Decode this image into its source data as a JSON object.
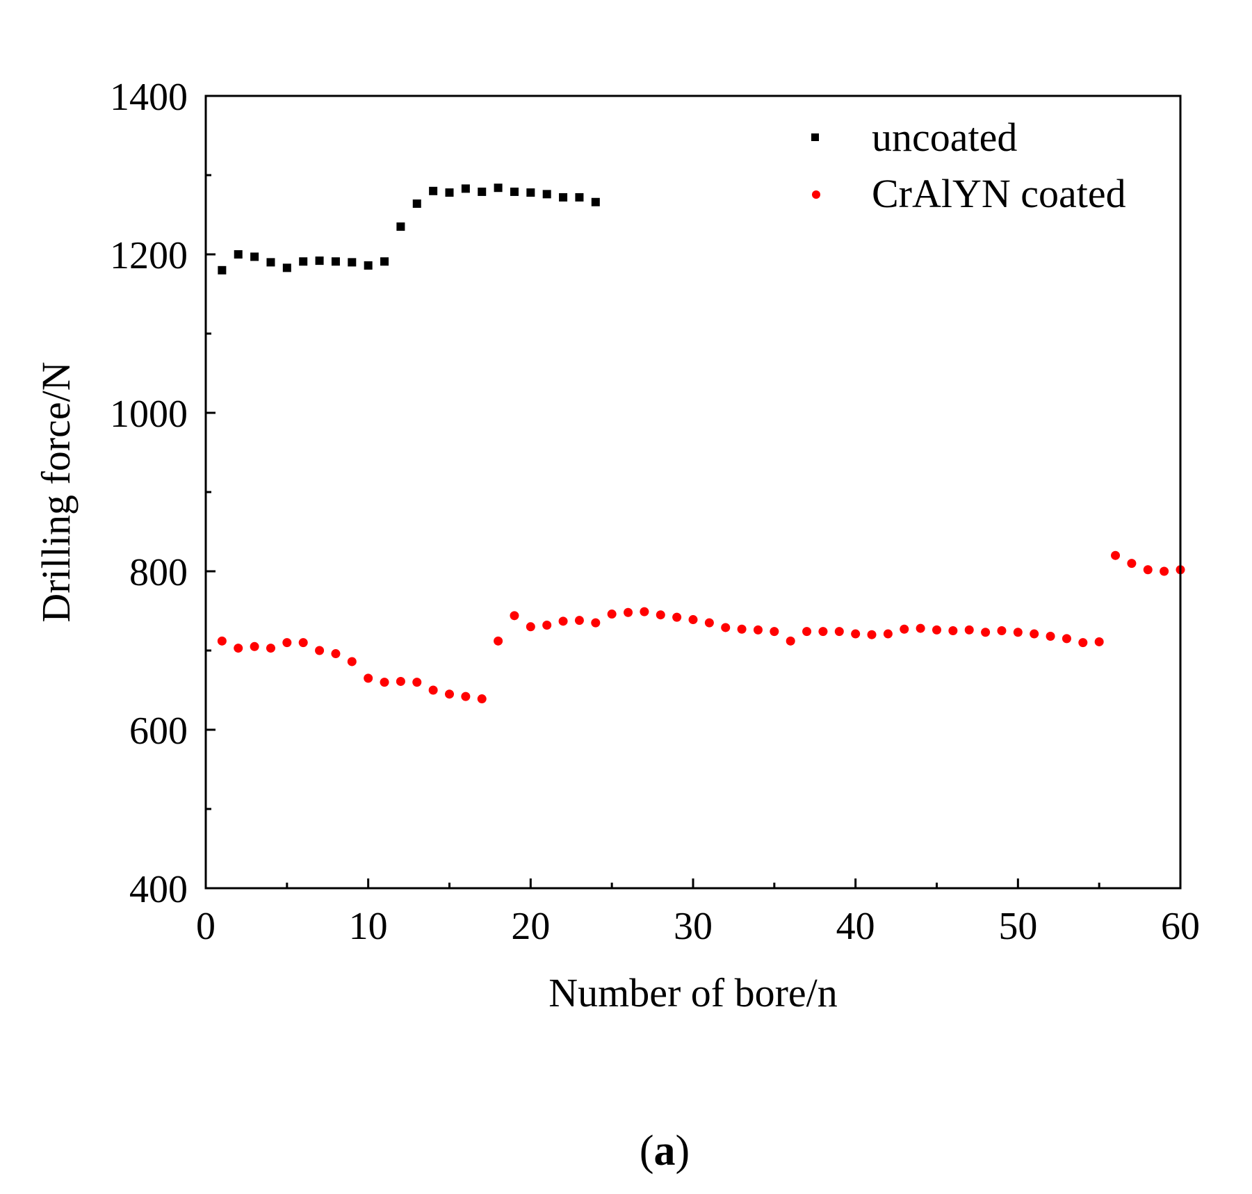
{
  "figure": {
    "panel_open": "(",
    "panel_letter": "a",
    "panel_close": ")"
  },
  "chart_data": {
    "type": "scatter",
    "title": "",
    "xlabel": "Number of bore/n",
    "ylabel": "Drilling force/N",
    "xlim": [
      0,
      60
    ],
    "ylim": [
      400,
      1400
    ],
    "xticks": [
      0,
      10,
      20,
      30,
      40,
      50,
      60
    ],
    "yticks": [
      400,
      600,
      800,
      1000,
      1200,
      1400
    ],
    "legend_position": "top-right",
    "grid": false,
    "series": [
      {
        "name": "uncoated",
        "marker": "square",
        "color": "#000000",
        "x": [
          1,
          2,
          3,
          4,
          5,
          6,
          7,
          8,
          9,
          10,
          11,
          12,
          13,
          14,
          15,
          16,
          17,
          18,
          19,
          20,
          21,
          22,
          23,
          24
        ],
        "y": [
          1180,
          1200,
          1197,
          1190,
          1183,
          1191,
          1192,
          1191,
          1190,
          1186,
          1191,
          1235,
          1264,
          1280,
          1278,
          1283,
          1279,
          1284,
          1279,
          1278,
          1276,
          1272,
          1272,
          1266
        ]
      },
      {
        "name": "CrAlYN coated",
        "marker": "circle",
        "color": "#ff0000",
        "x": [
          1,
          2,
          3,
          4,
          5,
          6,
          7,
          8,
          9,
          10,
          11,
          12,
          13,
          14,
          15,
          16,
          17,
          18,
          19,
          20,
          21,
          22,
          23,
          24,
          25,
          26,
          27,
          28,
          29,
          30,
          31,
          32,
          33,
          34,
          35,
          36,
          37,
          38,
          39,
          40,
          41,
          42,
          43,
          44,
          45,
          46,
          47,
          48,
          49,
          50,
          51,
          52,
          53,
          54,
          55,
          56,
          57,
          58,
          59,
          60
        ],
        "y": [
          712,
          703,
          705,
          703,
          710,
          710,
          700,
          696,
          686,
          665,
          660,
          661,
          660,
          650,
          645,
          642,
          639,
          712,
          744,
          730,
          732,
          737,
          738,
          735,
          746,
          748,
          749,
          745,
          742,
          739,
          735,
          729,
          727,
          726,
          724,
          712,
          724,
          724,
          724,
          721,
          720,
          721,
          727,
          728,
          726,
          725,
          726,
          723,
          725,
          723,
          721,
          718,
          715,
          710,
          711,
          820,
          810,
          802,
          800,
          802
        ]
      }
    ]
  }
}
